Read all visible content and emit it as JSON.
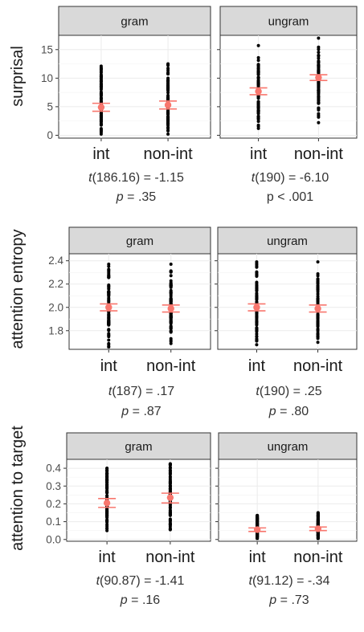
{
  "chart_data": [
    {
      "type": "scatter",
      "ylabel": "surprisal",
      "ylim": [
        -0.5,
        17.5
      ],
      "yticks": [
        0,
        5,
        10,
        15
      ],
      "tick_labels": [
        "0",
        "5",
        "10",
        "15"
      ],
      "categories": [
        "int",
        "non-int"
      ],
      "panels": [
        {
          "strip": "gram",
          "groups": [
            {
              "category": "int",
              "mean": 4.9,
              "ci": [
                4.2,
                5.6
              ],
              "range": [
                0.2,
                12.1
              ]
            },
            {
              "category": "non-int",
              "mean": 5.3,
              "ci": [
                4.6,
                6.0
              ],
              "range": [
                0.2,
                12.5
              ]
            }
          ],
          "stat_line1": {
            "prefix": "t",
            "rest": "(186.16) = -1.15"
          },
          "stat_line2": {
            "prefix": "p",
            "rest": " = .35"
          }
        },
        {
          "strip": "ungram",
          "groups": [
            {
              "category": "int",
              "mean": 7.7,
              "ci": [
                7.1,
                8.3
              ],
              "range": [
                1.2,
                15.7
              ]
            },
            {
              "category": "non-int",
              "mean": 10.1,
              "ci": [
                9.6,
                10.6
              ],
              "range": [
                2.2,
                17.0
              ]
            }
          ],
          "stat_line1": {
            "prefix": "t",
            "rest": "(190) = -6.10"
          },
          "stat_line2": {
            "prefix": "",
            "rest": "p < .001"
          }
        }
      ]
    },
    {
      "type": "scatter",
      "ylabel": "attention entropy",
      "ylim": [
        1.64,
        2.46
      ],
      "yticks": [
        1.8,
        2.0,
        2.2,
        2.4
      ],
      "tick_labels": [
        "1.8",
        "2.0",
        "2.2",
        "2.4"
      ],
      "categories": [
        "int",
        "non-int"
      ],
      "panels": [
        {
          "strip": "gram",
          "groups": [
            {
              "category": "int",
              "mean": 2.0,
              "ci": [
                1.97,
                2.03
              ],
              "range": [
                1.66,
                2.37
              ]
            },
            {
              "category": "non-int",
              "mean": 1.99,
              "ci": [
                1.96,
                2.02
              ],
              "range": [
                1.69,
                2.37
              ]
            }
          ],
          "stat_line1": {
            "prefix": "t",
            "rest": "(187) = .17"
          },
          "stat_line2": {
            "prefix": "p",
            "rest": " = .87"
          }
        },
        {
          "strip": "ungram",
          "groups": [
            {
              "category": "int",
              "mean": 2.0,
              "ci": [
                1.97,
                2.03
              ],
              "range": [
                1.68,
                2.39
              ]
            },
            {
              "category": "non-int",
              "mean": 1.99,
              "ci": [
                1.96,
                2.02
              ],
              "range": [
                1.7,
                2.39
              ]
            }
          ],
          "stat_line1": {
            "prefix": "t",
            "rest": "(190) = .25"
          },
          "stat_line2": {
            "prefix": "p",
            "rest": " = .80"
          }
        }
      ]
    },
    {
      "type": "scatter",
      "ylabel": "attention to target",
      "ylim": [
        -0.01,
        0.45
      ],
      "yticks": [
        0.0,
        0.1,
        0.2,
        0.3,
        0.4
      ],
      "tick_labels": [
        "0.0",
        "0.1",
        "0.2",
        "0.3",
        "0.4"
      ],
      "categories": [
        "int",
        "non-int"
      ],
      "panels": [
        {
          "strip": "gram",
          "groups": [
            {
              "category": "int",
              "mean": 0.205,
              "ci": [
                0.18,
                0.23
              ],
              "range": [
                0.05,
                0.4
              ]
            },
            {
              "category": "non-int",
              "mean": 0.235,
              "ci": [
                0.205,
                0.26
              ],
              "range": [
                0.055,
                0.425
              ]
            }
          ],
          "stat_line1": {
            "prefix": "t",
            "rest": "(90.87) = -1.41"
          },
          "stat_line2": {
            "prefix": "p",
            "rest": " = .16"
          }
        },
        {
          "strip": "ungram",
          "groups": [
            {
              "category": "int",
              "mean": 0.055,
              "ci": [
                0.045,
                0.065
              ],
              "range": [
                0.005,
                0.135
              ]
            },
            {
              "category": "non-int",
              "mean": 0.06,
              "ci": [
                0.05,
                0.07
              ],
              "range": [
                0.005,
                0.15
              ]
            }
          ],
          "stat_line1": {
            "prefix": "t",
            "rest": "(91.12) = -.34"
          },
          "stat_line2": {
            "prefix": "p",
            "rest": " = .73"
          }
        }
      ]
    }
  ],
  "colors": {
    "strip_fill": "#d9d9d9",
    "panel_border": "#333333",
    "grid": "#ebebeb",
    "point": "#000000",
    "mean_point": "#f8766d",
    "ci_bar": "#f8766d"
  }
}
